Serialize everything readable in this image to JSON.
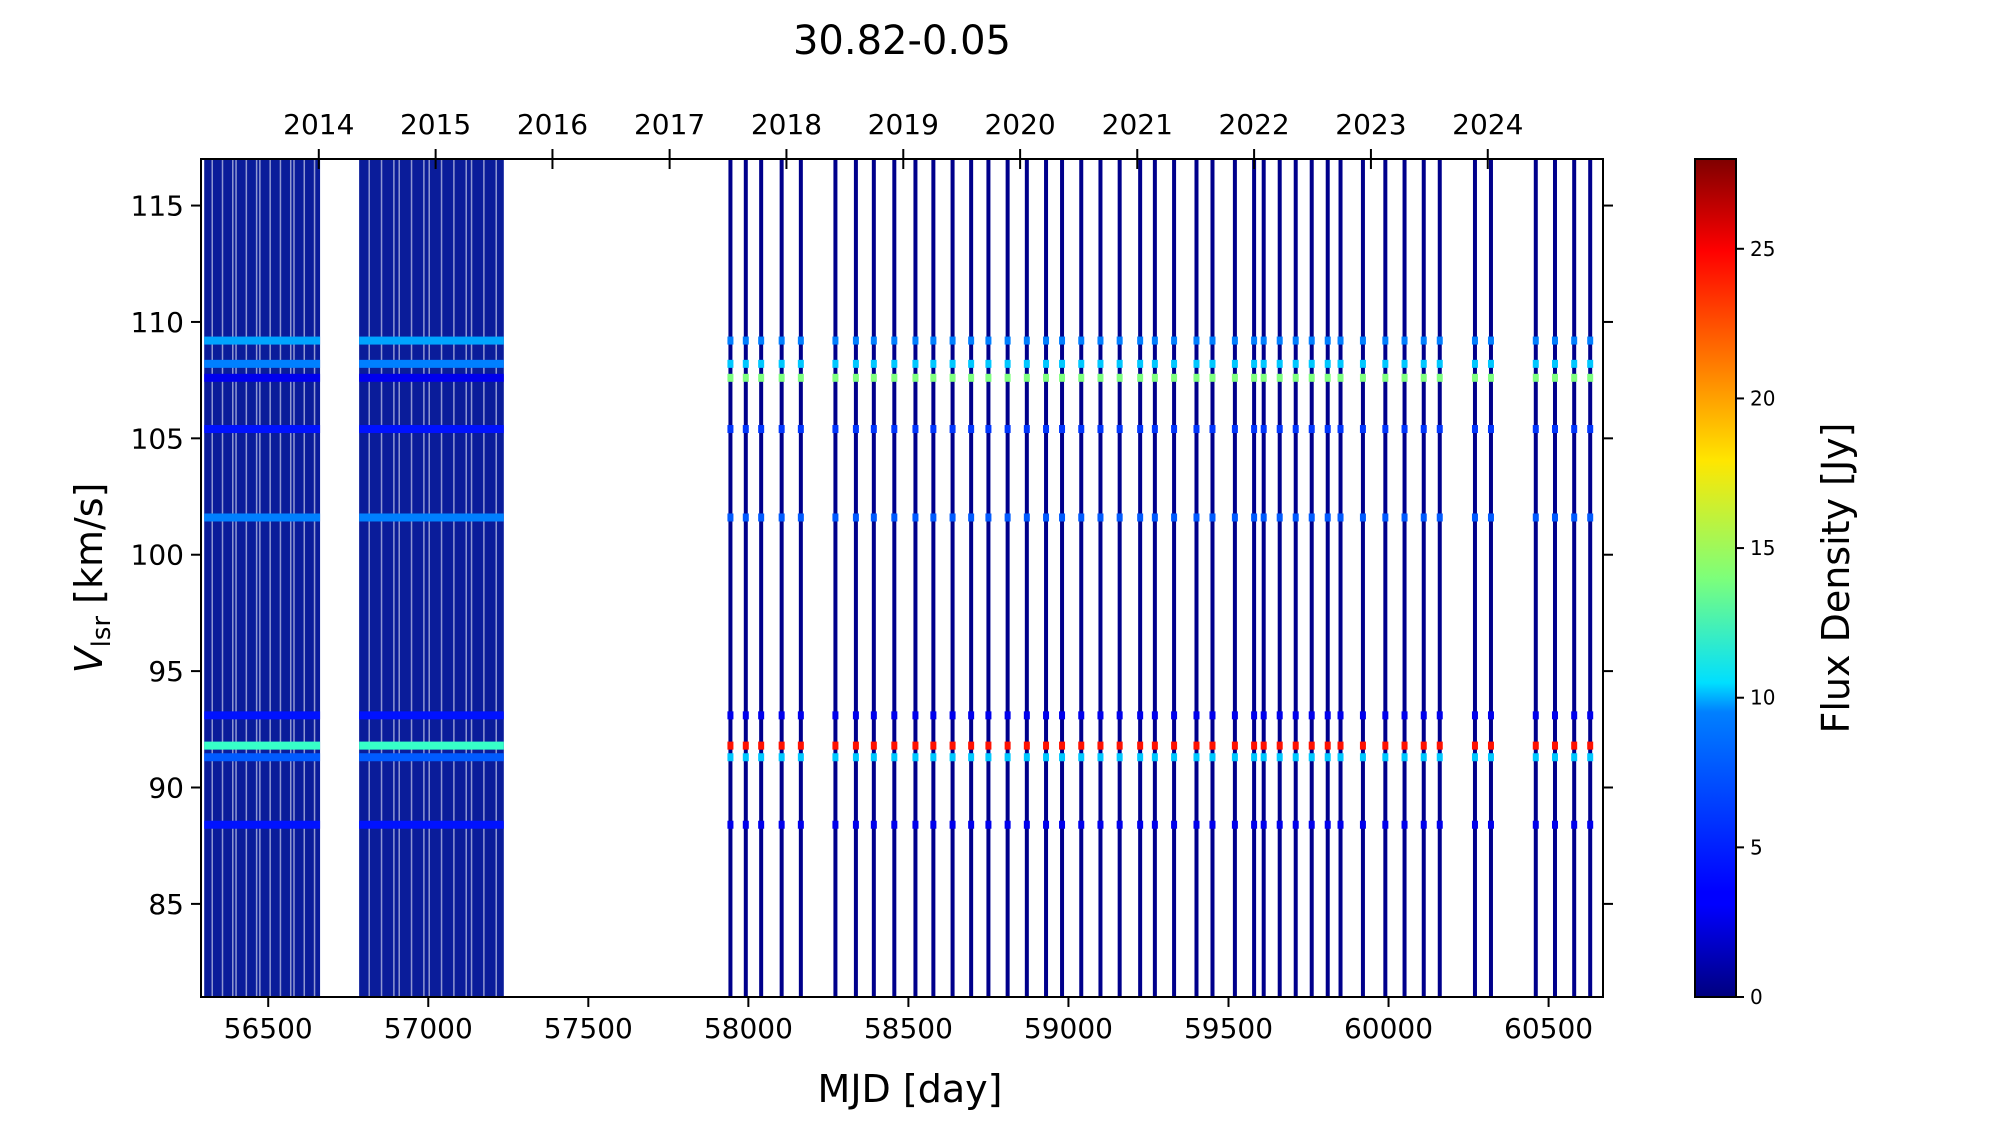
{
  "chart_data": {
    "type": "heatmap",
    "title": "30.82-0.05",
    "xlabel": "MJD [day]",
    "ylabel_main": "V",
    "ylabel_sub": "lsr",
    "ylabel_unit": " [km/s]",
    "colorbar_label": "Flux Density [Jy]",
    "xlim": [
      56290,
      60670
    ],
    "ylim": [
      81,
      117
    ],
    "clim": [
      0,
      28
    ],
    "colormap": "jet",
    "xticks": [
      56500,
      57000,
      57500,
      58000,
      58500,
      59000,
      59500,
      60000,
      60500
    ],
    "yticks": [
      85,
      90,
      95,
      100,
      105,
      110,
      115
    ],
    "top_axis": {
      "ticks": [
        {
          "label": "2014",
          "mjd": 56658
        },
        {
          "label": "2015",
          "mjd": 57023
        },
        {
          "label": "2016",
          "mjd": 57388
        },
        {
          "label": "2017",
          "mjd": 57754
        },
        {
          "label": "2018",
          "mjd": 58119
        },
        {
          "label": "2019",
          "mjd": 58484
        },
        {
          "label": "2020",
          "mjd": 58849
        },
        {
          "label": "2021",
          "mjd": 59215
        },
        {
          "label": "2022",
          "mjd": 59580
        },
        {
          "label": "2023",
          "mjd": 59945
        },
        {
          "label": "2024",
          "mjd": 60310
        }
      ]
    },
    "colorbar_ticks": [
      0,
      5,
      10,
      15,
      20,
      25
    ],
    "observing_blocks": [
      {
        "start": 56300,
        "end": 56662,
        "dense": true
      },
      {
        "start": 56784,
        "end": 57236,
        "dense": true
      }
    ],
    "observation_epochs": [
      57944,
      57992,
      58040,
      58104,
      58164,
      58272,
      58336,
      58392,
      58456,
      58522,
      58578,
      58638,
      58696,
      58750,
      58810,
      58870,
      58930,
      58980,
      59040,
      59100,
      59160,
      59224,
      59270,
      59330,
      59400,
      59450,
      59520,
      59580,
      59610,
      59660,
      59710,
      59760,
      59810,
      59850,
      59920,
      59990,
      60050,
      60110,
      60160,
      60270,
      60320,
      60460,
      60520,
      60580,
      60630
    ],
    "spectral_features": [
      {
        "velocity": 109.2,
        "flux_early": 8,
        "flux_late": 7
      },
      {
        "velocity": 108.2,
        "flux_early": 7,
        "flux_late": 9
      },
      {
        "velocity": 107.6,
        "flux_early": 3,
        "flux_late": 14
      },
      {
        "velocity": 105.4,
        "flux_early": 4,
        "flux_late": 5
      },
      {
        "velocity": 101.6,
        "flux_early": 7,
        "flux_late": 6
      },
      {
        "velocity": 93.1,
        "flux_early": 4,
        "flux_late": 3
      },
      {
        "velocity": 91.8,
        "flux_early": 12,
        "flux_late": 24
      },
      {
        "velocity": 91.3,
        "flux_early": 6,
        "flux_late": 9
      },
      {
        "velocity": 88.4,
        "flux_early": 4,
        "flux_late": 3
      }
    ]
  }
}
